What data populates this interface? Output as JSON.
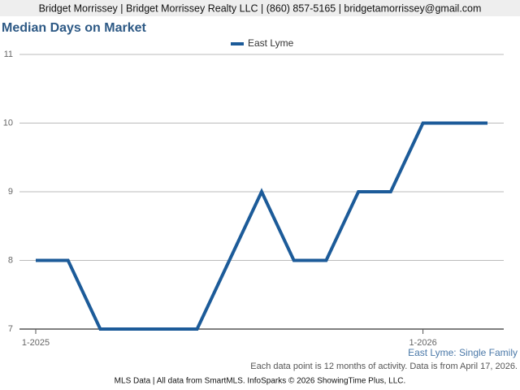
{
  "header": "Bridget Morrissey | Bridget Morrissey Realty LLC | (860) 857-5165 | bridgetamorrissey@gmail.com",
  "chart_data": {
    "type": "line",
    "title": "Median Days on Market",
    "categories": [
      "1-2025",
      null,
      null,
      null,
      null,
      null,
      null,
      null,
      null,
      null,
      null,
      null,
      "1-2026",
      null,
      null
    ],
    "series": [
      {
        "name": "East Lyme",
        "color": "#1c5b99",
        "values": [
          8,
          8,
          7,
          7,
          7,
          7,
          8,
          9,
          8,
          8,
          9,
          9,
          10,
          10,
          10
        ]
      }
    ],
    "ylim": [
      7,
      11
    ],
    "yticks": [
      7,
      8,
      9,
      10,
      11
    ],
    "grid": true,
    "legend": "top",
    "annotations": [
      "East Lyme: Single Family",
      "Each data point is 12 months of activity. Data is from April 17, 2026."
    ]
  },
  "footer": "MLS Data | All data from SmartMLS. InfoSparks © 2026 ShowingTime Plus, LLC."
}
